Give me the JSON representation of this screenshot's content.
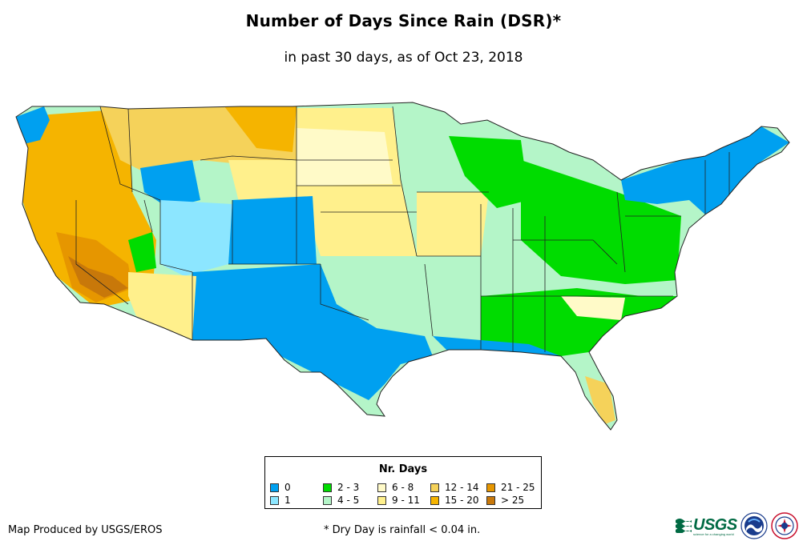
{
  "title": "Number of Days Since Rain (DSR)*",
  "subtitle": "in past 30 days, as of Oct 23, 2018",
  "legend": {
    "title": "Nr. Days",
    "items": [
      {
        "label": "0",
        "color": "#00a0f0"
      },
      {
        "label": "1",
        "color": "#8ce6ff"
      },
      {
        "label": "2 - 3",
        "color": "#00dc00"
      },
      {
        "label": "4 - 5",
        "color": "#b4f5c8"
      },
      {
        "label": "6 - 8",
        "color": "#fffac8"
      },
      {
        "label": "9 - 11",
        "color": "#fff08c"
      },
      {
        "label": "12 - 14",
        "color": "#f5d25a"
      },
      {
        "label": "15 - 20",
        "color": "#f5b400"
      },
      {
        "label": "21 - 25",
        "color": "#e69600"
      },
      {
        "label": "> 25",
        "color": "#c8780a"
      }
    ]
  },
  "footer": {
    "producer": "Map Produced by USGS/EROS",
    "note": "* Dry Day is rainfall < 0.04 in."
  },
  "logos": {
    "usgs_text": "USGS",
    "usgs_tagline": "science for a changing world",
    "noaa_text": "NOAA"
  }
}
